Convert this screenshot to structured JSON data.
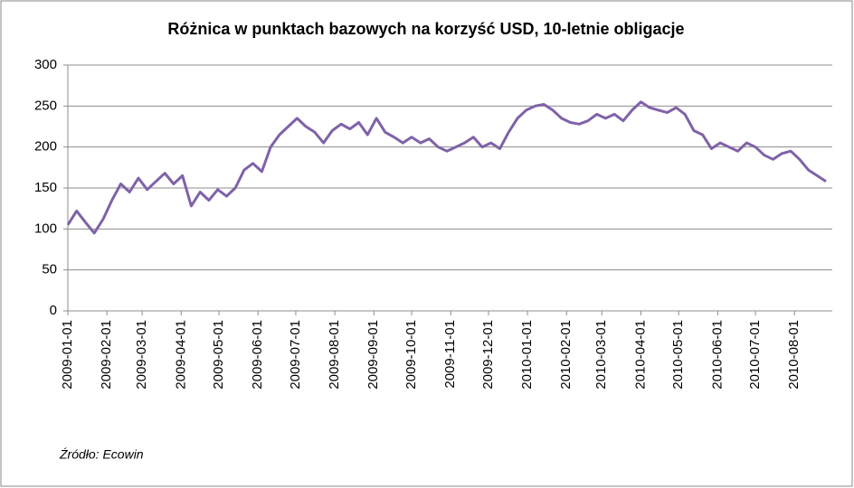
{
  "chart_data": {
    "type": "line",
    "title": "Różnica w punktach bazowych na korzyść USD, 10-letnie obligacje",
    "source": "Źródło: Ecowin",
    "x": [
      "2009-01-01",
      "2009-01-08",
      "2009-01-15",
      "2009-01-22",
      "2009-01-29",
      "2009-02-05",
      "2009-02-12",
      "2009-02-19",
      "2009-02-26",
      "2009-03-05",
      "2009-03-12",
      "2009-03-19",
      "2009-03-26",
      "2009-04-02",
      "2009-04-09",
      "2009-04-16",
      "2009-04-23",
      "2009-04-30",
      "2009-05-07",
      "2009-05-14",
      "2009-05-21",
      "2009-05-28",
      "2009-06-04",
      "2009-06-11",
      "2009-06-18",
      "2009-06-25",
      "2009-07-02",
      "2009-07-09",
      "2009-07-16",
      "2009-07-23",
      "2009-07-30",
      "2009-08-06",
      "2009-08-13",
      "2009-08-20",
      "2009-08-27",
      "2009-09-03",
      "2009-09-10",
      "2009-09-17",
      "2009-09-24",
      "2009-10-01",
      "2009-10-08",
      "2009-10-15",
      "2009-10-22",
      "2009-10-29",
      "2009-11-05",
      "2009-11-12",
      "2009-11-19",
      "2009-11-26",
      "2009-12-03",
      "2009-12-10",
      "2009-12-17",
      "2009-12-24",
      "2009-12-31",
      "2010-01-07",
      "2010-01-14",
      "2010-01-21",
      "2010-01-28",
      "2010-02-04",
      "2010-02-11",
      "2010-02-18",
      "2010-02-25",
      "2010-03-04",
      "2010-03-11",
      "2010-03-18",
      "2010-03-25",
      "2010-04-01",
      "2010-04-08",
      "2010-04-15",
      "2010-04-22",
      "2010-04-29",
      "2010-05-06",
      "2010-05-13",
      "2010-05-20",
      "2010-05-27",
      "2010-06-03",
      "2010-06-10",
      "2010-06-17",
      "2010-06-24",
      "2010-07-01",
      "2010-07-08",
      "2010-07-15",
      "2010-07-22",
      "2010-07-29",
      "2010-08-05",
      "2010-08-12",
      "2010-08-19",
      "2010-08-26"
    ],
    "series": [
      {
        "name": "USD",
        "color": "#7f62a8",
        "values": [
          105,
          122,
          108,
          95,
          112,
          135,
          155,
          145,
          162,
          148,
          158,
          168,
          155,
          165,
          128,
          145,
          135,
          148,
          140,
          150,
          172,
          180,
          170,
          200,
          215,
          225,
          235,
          225,
          218,
          205,
          220,
          228,
          222,
          230,
          215,
          235,
          218,
          212,
          205,
          212,
          205,
          210,
          200,
          195,
          200,
          205,
          212,
          200,
          205,
          198,
          218,
          235,
          245,
          250,
          252,
          245,
          235,
          230,
          228,
          232,
          240,
          235,
          240,
          232,
          245,
          255,
          248,
          245,
          242,
          248,
          240,
          220,
          215,
          198,
          205,
          200,
          195,
          205,
          200,
          190,
          185,
          192,
          195,
          185,
          172,
          165,
          158
        ]
      }
    ],
    "xlim": [
      "2009-01-01",
      "2010-08-31"
    ],
    "xticks": [
      "2009-01-01",
      "2009-02-01",
      "2009-03-01",
      "2009-04-01",
      "2009-05-01",
      "2009-06-01",
      "2009-07-01",
      "2009-08-01",
      "2009-09-01",
      "2009-10-01",
      "2009-11-01",
      "2009-12-01",
      "2010-01-01",
      "2010-02-01",
      "2010-03-01",
      "2010-04-01",
      "2010-05-01",
      "2010-06-01",
      "2010-07-01",
      "2010-08-01"
    ],
    "ylim": [
      0,
      300
    ],
    "yticks": [
      0,
      50,
      100,
      150,
      200,
      250,
      300
    ],
    "grid": true,
    "legend": false
  }
}
